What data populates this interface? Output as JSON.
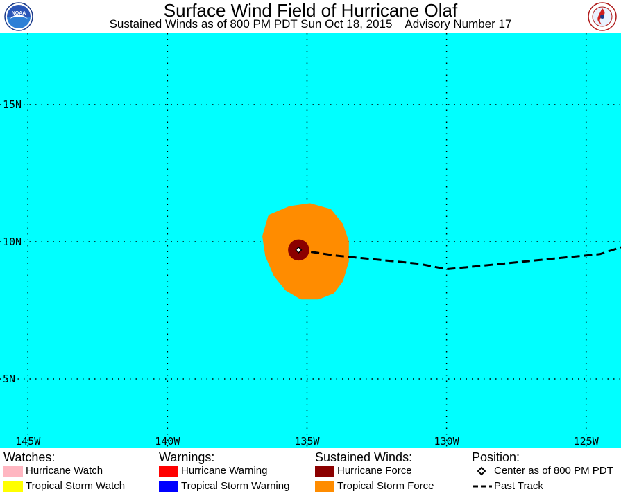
{
  "header": {
    "title": "Surface Wind Field of Hurricane Olaf",
    "subtitle": "Sustained Winds as of 800 PM PDT Sun Oct 18, 2015    Advisory Number 17",
    "logo_left_text": "NOAA",
    "logo_right_text": "NATIONAL WEATHER SERVICE"
  },
  "map": {
    "colors": {
      "ocean": "#00FFFF",
      "tropical_storm_force": "#FF8C00",
      "hurricane_force": "#8B0000",
      "hurricane_warning": "#FF0000",
      "tropical_storm_warning": "#0000FF",
      "hurricane_watch": "#FFB6C1",
      "tropical_storm_watch": "#FFFF00",
      "grid": "#000000"
    },
    "lon_range": [
      -146,
      -123.75
    ],
    "lat_range": [
      2.5,
      17.6
    ],
    "lat_labels": [
      {
        "lat": 15,
        "text": "15N"
      },
      {
        "lat": 10,
        "text": "10N"
      },
      {
        "lat": 5,
        "text": "5N"
      }
    ],
    "lon_labels": [
      {
        "lon": -145,
        "text": "145W"
      },
      {
        "lon": -140,
        "text": "140W"
      },
      {
        "lon": -135,
        "text": "135W"
      },
      {
        "lon": -130,
        "text": "130W"
      },
      {
        "lon": -125,
        "text": "125W"
      }
    ],
    "center": {
      "lon": -135.3,
      "lat": 9.7
    },
    "hurricane_force_radius_deg": 0.2,
    "tropical_storm_field": [
      [
        -136.3,
        10.9
      ],
      [
        -135.6,
        11.2
      ],
      [
        -134.9,
        11.3
      ],
      [
        -134.2,
        11.1
      ],
      [
        -133.8,
        10.6
      ],
      [
        -133.6,
        10.0
      ],
      [
        -133.6,
        9.3
      ],
      [
        -133.8,
        8.6
      ],
      [
        -134.1,
        8.2
      ],
      [
        -134.6,
        8.0
      ],
      [
        -135.2,
        8.0
      ],
      [
        -135.7,
        8.3
      ],
      [
        -136.1,
        8.8
      ],
      [
        -136.4,
        9.5
      ],
      [
        -136.5,
        10.2
      ]
    ],
    "past_track": [
      [
        -135.3,
        9.7
      ],
      [
        -134.0,
        9.5
      ],
      [
        -132.0,
        9.3
      ],
      [
        -131.0,
        9.2
      ],
      [
        -130.0,
        9.0
      ],
      [
        -128.0,
        9.2
      ],
      [
        -126.0,
        9.4
      ],
      [
        -124.5,
        9.55
      ],
      [
        -123.75,
        9.8
      ]
    ]
  },
  "legend": {
    "watches": {
      "heading": "Watches:",
      "items": [
        {
          "label": "Hurricane Watch",
          "color": "#FFB6C1"
        },
        {
          "label": "Tropical Storm Watch",
          "color": "#FFFF00"
        }
      ]
    },
    "warnings": {
      "heading": "Warnings:",
      "items": [
        {
          "label": "Hurricane Warning",
          "color": "#FF0000"
        },
        {
          "label": "Tropical Storm Warning",
          "color": "#0000FF"
        }
      ]
    },
    "sustained_winds": {
      "heading": "Sustained Winds:",
      "items": [
        {
          "label": "Hurricane Force",
          "color": "#8B0000"
        },
        {
          "label": "Tropical Storm Force",
          "color": "#FF8C00"
        }
      ]
    },
    "position": {
      "heading": "Position:",
      "center_label": "Center as of 800 PM PDT",
      "track_label": "Past Track"
    }
  }
}
